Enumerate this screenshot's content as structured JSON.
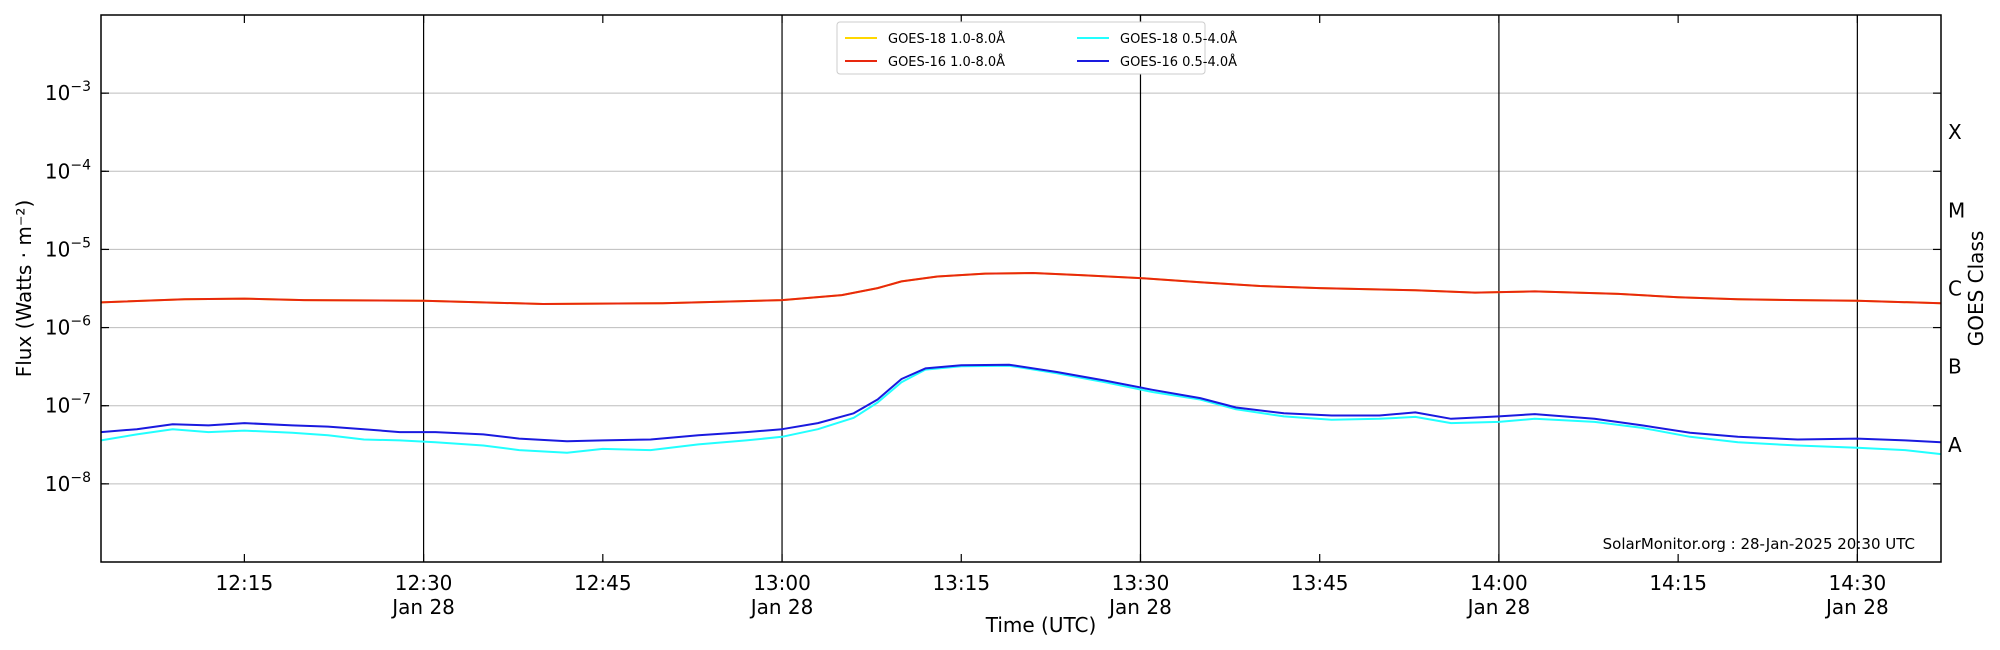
{
  "chart_data": {
    "type": "line",
    "xlabel": "Time (UTC)",
    "ylabel": "Flux (Watts · m⁻²)",
    "y2label": "GOES Class",
    "yscale": "log",
    "xlim": [
      "2025-01-28 12:03",
      "2025-01-28 14:37"
    ],
    "ylim": [
      1e-09,
      0.01
    ],
    "y_ticks": [
      {
        "value": 1e-08,
        "label_base": "10",
        "label_exp": "−8"
      },
      {
        "value": 1e-07,
        "label_base": "10",
        "label_exp": "−7"
      },
      {
        "value": 1e-06,
        "label_base": "10",
        "label_exp": "−6"
      },
      {
        "value": 1e-05,
        "label_base": "10",
        "label_exp": "−5"
      },
      {
        "value": 0.0001,
        "label_base": "10",
        "label_exp": "−4"
      },
      {
        "value": 0.001,
        "label_base": "10",
        "label_exp": "−3"
      }
    ],
    "x_ticks": [
      {
        "time": "12:15",
        "label": "12:15",
        "sublabel": ""
      },
      {
        "time": "12:30",
        "label": "12:30",
        "sublabel": "Jan 28"
      },
      {
        "time": "12:45",
        "label": "12:45",
        "sublabel": ""
      },
      {
        "time": "13:00",
        "label": "13:00",
        "sublabel": "Jan 28"
      },
      {
        "time": "13:15",
        "label": "13:15",
        "sublabel": ""
      },
      {
        "time": "13:30",
        "label": "13:30",
        "sublabel": "Jan 28"
      },
      {
        "time": "13:45",
        "label": "13:45",
        "sublabel": ""
      },
      {
        "time": "14:00",
        "label": "14:00",
        "sublabel": "Jan 28"
      },
      {
        "time": "14:15",
        "label": "14:15",
        "sublabel": ""
      },
      {
        "time": "14:30",
        "label": "14:30",
        "sublabel": "Jan 28"
      }
    ],
    "class_labels": [
      {
        "label": "A",
        "value": 3.16e-08
      },
      {
        "label": "B",
        "value": 3.16e-07
      },
      {
        "label": "C",
        "value": 3.16e-06
      },
      {
        "label": "M",
        "value": 3.16e-05
      },
      {
        "label": "X",
        "value": 0.000316
      }
    ],
    "vertical_lines": [
      "12:30",
      "13:00",
      "13:30",
      "14:00",
      "14:30"
    ],
    "grid": "horizontal at decades",
    "legend": "top-center",
    "series": [
      {
        "name": "GOES-18 1.0-8.0Å",
        "color": "#ffd700",
        "x": [
          "12:03",
          "12:10",
          "12:15",
          "12:20",
          "12:30",
          "12:40",
          "12:50",
          "13:00",
          "13:05",
          "13:08",
          "13:10",
          "13:13",
          "13:17",
          "13:21",
          "13:25",
          "13:30",
          "13:35",
          "13:40",
          "13:45",
          "13:53",
          "13:58",
          "14:03",
          "14:10",
          "14:15",
          "14:20",
          "14:25",
          "14:30",
          "14:37"
        ],
        "y": [
          2.1e-06,
          2.3e-06,
          2.35e-06,
          2.25e-06,
          2.2e-06,
          2e-06,
          2.05e-06,
          2.25e-06,
          2.6e-06,
          3.2e-06,
          3.9e-06,
          4.5e-06,
          4.9e-06,
          5e-06,
          4.7e-06,
          4.3e-06,
          3.8e-06,
          3.4e-06,
          3.2e-06,
          3e-06,
          2.8e-06,
          2.9e-06,
          2.7e-06,
          2.45e-06,
          2.3e-06,
          2.25e-06,
          2.2e-06,
          2.05e-06
        ]
      },
      {
        "name": "GOES-16 1.0-8.0Å",
        "color": "#e8280e",
        "x": [
          "12:03",
          "12:10",
          "12:15",
          "12:20",
          "12:30",
          "12:40",
          "12:50",
          "13:00",
          "13:05",
          "13:08",
          "13:10",
          "13:13",
          "13:17",
          "13:21",
          "13:25",
          "13:30",
          "13:35",
          "13:40",
          "13:45",
          "13:53",
          "13:58",
          "14:03",
          "14:10",
          "14:15",
          "14:20",
          "14:25",
          "14:30",
          "14:37"
        ],
        "y": [
          2.1e-06,
          2.3e-06,
          2.35e-06,
          2.25e-06,
          2.2e-06,
          2e-06,
          2.05e-06,
          2.25e-06,
          2.6e-06,
          3.2e-06,
          3.9e-06,
          4.5e-06,
          4.9e-06,
          5e-06,
          4.7e-06,
          4.3e-06,
          3.8e-06,
          3.4e-06,
          3.2e-06,
          3e-06,
          2.8e-06,
          2.9e-06,
          2.7e-06,
          2.45e-06,
          2.3e-06,
          2.25e-06,
          2.2e-06,
          2.05e-06
        ]
      },
      {
        "name": "GOES-18 0.5-4.0Å",
        "color": "#22ffff",
        "x": [
          "12:03",
          "12:06",
          "12:09",
          "12:12",
          "12:15",
          "12:19",
          "12:22",
          "12:25",
          "12:28",
          "12:31",
          "12:35",
          "12:38",
          "12:42",
          "12:45",
          "12:49",
          "12:53",
          "12:57",
          "13:00",
          "13:03",
          "13:06",
          "13:08",
          "13:10",
          "13:12",
          "13:15",
          "13:19",
          "13:23",
          "13:27",
          "13:31",
          "13:35",
          "13:38",
          "13:42",
          "13:46",
          "13:50",
          "13:53",
          "13:56",
          "14:00",
          "14:03",
          "14:08",
          "14:12",
          "14:16",
          "14:20",
          "14:25",
          "14:30",
          "14:34",
          "14:37"
        ],
        "y": [
          3.6e-08,
          4.3e-08,
          5e-08,
          4.6e-08,
          4.8e-08,
          4.5e-08,
          4.2e-08,
          3.7e-08,
          3.6e-08,
          3.4e-08,
          3.1e-08,
          2.7e-08,
          2.5e-08,
          2.8e-08,
          2.7e-08,
          3.2e-08,
          3.6e-08,
          4e-08,
          5e-08,
          7e-08,
          1.1e-07,
          2e-07,
          2.9e-07,
          3.2e-07,
          3.25e-07,
          2.6e-07,
          2e-07,
          1.5e-07,
          1.2e-07,
          9e-08,
          7.3e-08,
          6.6e-08,
          6.8e-08,
          7.2e-08,
          6e-08,
          6.2e-08,
          6.8e-08,
          6.2e-08,
          5.2e-08,
          4e-08,
          3.4e-08,
          3.1e-08,
          2.9e-08,
          2.7e-08,
          2.4e-08
        ]
      },
      {
        "name": "GOES-16 0.5-4.0Å",
        "color": "#1a1adf",
        "x": [
          "12:03",
          "12:06",
          "12:09",
          "12:12",
          "12:15",
          "12:19",
          "12:22",
          "12:25",
          "12:28",
          "12:31",
          "12:35",
          "12:38",
          "12:42",
          "12:45",
          "12:49",
          "12:53",
          "12:57",
          "13:00",
          "13:03",
          "13:06",
          "13:08",
          "13:10",
          "13:12",
          "13:15",
          "13:19",
          "13:23",
          "13:27",
          "13:31",
          "13:35",
          "13:38",
          "13:42",
          "13:46",
          "13:50",
          "13:53",
          "13:56",
          "14:00",
          "14:03",
          "14:08",
          "14:12",
          "14:16",
          "14:20",
          "14:25",
          "14:30",
          "14:34",
          "14:37"
        ],
        "y": [
          4.6e-08,
          5e-08,
          5.8e-08,
          5.6e-08,
          6e-08,
          5.6e-08,
          5.4e-08,
          5e-08,
          4.6e-08,
          4.6e-08,
          4.3e-08,
          3.8e-08,
          3.5e-08,
          3.6e-08,
          3.7e-08,
          4.2e-08,
          4.6e-08,
          5e-08,
          6e-08,
          8e-08,
          1.2e-07,
          2.2e-07,
          3e-07,
          3.3e-07,
          3.35e-07,
          2.7e-07,
          2.1e-07,
          1.6e-07,
          1.25e-07,
          9.5e-08,
          8e-08,
          7.5e-08,
          7.5e-08,
          8.2e-08,
          6.8e-08,
          7.3e-08,
          7.8e-08,
          6.8e-08,
          5.6e-08,
          4.5e-08,
          4e-08,
          3.7e-08,
          3.8e-08,
          3.6e-08,
          3.4e-08
        ]
      }
    ]
  },
  "credit": "SolarMonitor.org : 28-Jan-2025 20:30 UTC"
}
